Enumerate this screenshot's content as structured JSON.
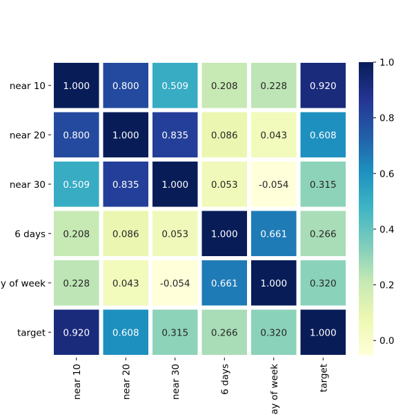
{
  "chart_data": {
    "type": "heatmap",
    "title": "",
    "xlabel": "",
    "ylabel": "",
    "rows": [
      "near 10",
      "near 20",
      "near 30",
      "6 days",
      "day of week",
      "target"
    ],
    "columns": [
      "near 10",
      "near 20",
      "near 30",
      "6 days",
      "day of week",
      "target"
    ],
    "values": [
      [
        1.0,
        0.8,
        0.509,
        0.208,
        0.228,
        0.92
      ],
      [
        0.8,
        1.0,
        0.835,
        0.086,
        0.043,
        0.608
      ],
      [
        0.509,
        0.835,
        1.0,
        0.053,
        -0.054,
        0.315
      ],
      [
        0.208,
        0.086,
        0.053,
        1.0,
        0.661,
        0.266
      ],
      [
        0.228,
        0.043,
        -0.054,
        0.661,
        1.0,
        0.32
      ],
      [
        0.92,
        0.608,
        0.315,
        0.266,
        0.32,
        1.0
      ]
    ],
    "annotation_format": "3 decimals",
    "colormap": "YlGnBu",
    "vmin": -0.054,
    "vmax": 1.0,
    "colorbar": {
      "ticks": [
        0.0,
        0.2,
        0.4,
        0.6,
        0.8,
        1.0
      ],
      "tick_labels": [
        "0.0",
        "0.2",
        "0.4",
        "0.6",
        "0.8",
        "1.0"
      ],
      "placement": "right"
    },
    "grid": false
  }
}
